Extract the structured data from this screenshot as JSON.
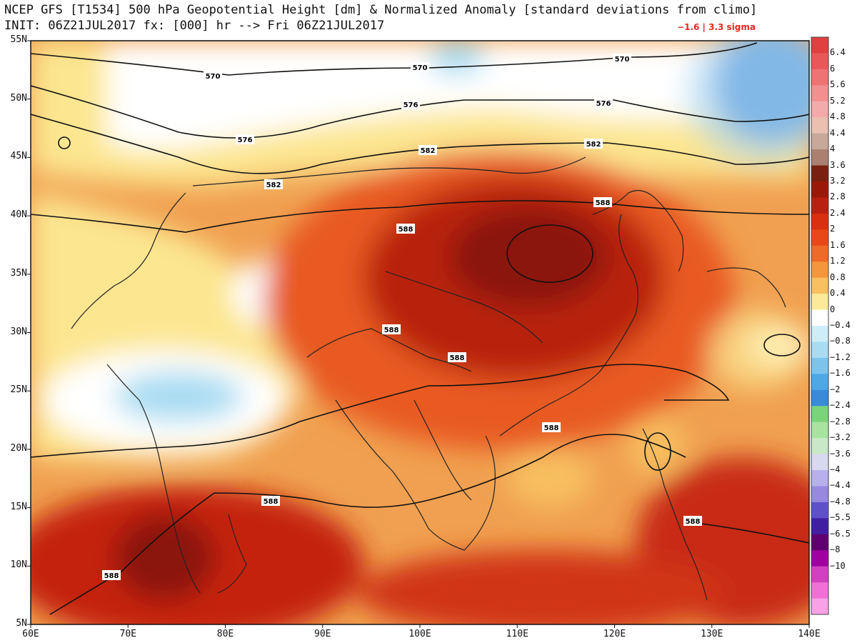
{
  "title": {
    "line1": "NCEP GFS [T1534] 500 hPa Geopotential Height [dm] & Normalized Anomaly [standard deviations from climo]",
    "line2": "INIT: 06Z21JUL2017 fx: [000] hr --> Fri 06Z21JUL2017",
    "range": "−1.6 | 3.3 sigma"
  },
  "axes": {
    "lat_labels": [
      "55N",
      "50N",
      "45N",
      "40N",
      "35N",
      "30N",
      "25N",
      "20N",
      "15N",
      "10N",
      "5N"
    ],
    "lon_labels": [
      "60E",
      "70E",
      "80E",
      "90E",
      "100E",
      "110E",
      "120E",
      "130E",
      "140E"
    ]
  },
  "colorbar": {
    "labels": [
      "6.4",
      "6",
      "5.6",
      "5.2",
      "4.8",
      "4.4",
      "4",
      "3.6",
      "3.2",
      "2.8",
      "2.4",
      "2",
      "1.6",
      "1.2",
      "0.8",
      "0.4",
      "0",
      "−0.4",
      "−0.8",
      "−1.2",
      "−1.6",
      "−2",
      "−2.4",
      "−2.8",
      "−3.2",
      "−3.6",
      "−4",
      "−4.4",
      "−4.8",
      "−5.5",
      "−6.5",
      "−8",
      "−10"
    ],
    "colors": [
      "#e04040",
      "#e85858",
      "#ee7474",
      "#f29090",
      "#f4aaaa",
      "#eac0b0",
      "#c8a898",
      "#aa8070",
      "#7a2010",
      "#9a1808",
      "#b82010",
      "#d83010",
      "#e84818",
      "#ee6a28",
      "#f4963c",
      "#f8c060",
      "#fcea9a",
      "#ffffff",
      "#cdeef8",
      "#a8dcf2",
      "#7cc4ec",
      "#4fa8e4",
      "#3a8ad8",
      "#7ad47a",
      "#a8e4a0",
      "#c8e8c8",
      "#d8d8f0",
      "#b8b0ec",
      "#9888e0",
      "#6050c8",
      "#4020a0",
      "#600070",
      "#a000a0",
      "#d040c0",
      "#f070d8",
      "#f8a0e8"
    ]
  },
  "contour_labels": [
    "570",
    "570",
    "570",
    "576",
    "576",
    "576",
    "582",
    "582",
    "582",
    "588",
    "588",
    "588",
    "588",
    "588",
    "588",
    "588",
    "588"
  ]
}
